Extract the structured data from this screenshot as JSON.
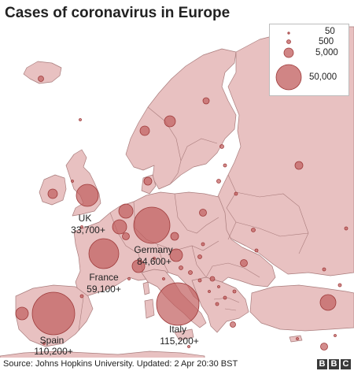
{
  "title": "Cases of coronavirus in Europe",
  "source": "Source: Johns Hopkins University. Updated: 2 Apr 20:30 BST",
  "logo": [
    "B",
    "B",
    "C"
  ],
  "colors": {
    "land": "#e8c1c1",
    "border": "#a97c7c",
    "sea": "#ffffff",
    "bubble": "#c05c5c",
    "bubble_stroke": "#9e3a3a"
  },
  "legend": [
    {
      "label": "50",
      "value": 50
    },
    {
      "label": "500",
      "value": 500
    },
    {
      "label": "5,000",
      "value": 5000
    },
    {
      "label": "50,000",
      "value": 50000
    }
  ],
  "labelled_countries": [
    {
      "name": "UK",
      "cases": "33,700+"
    },
    {
      "name": "Germany",
      "cases": "84,600+"
    },
    {
      "name": "France",
      "cases": "59,100+"
    },
    {
      "name": "Spain",
      "cases": "110,200+"
    },
    {
      "name": "Italy",
      "cases": "115,200+"
    }
  ]
}
